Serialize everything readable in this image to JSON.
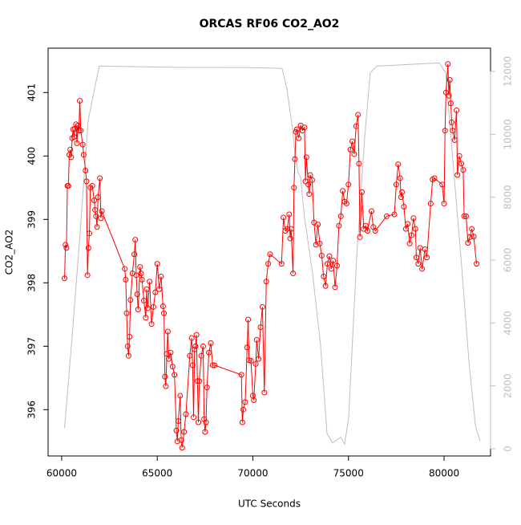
{
  "chart_data": {
    "type": "line",
    "title": "ORCAS RF06 CO2_AO2",
    "x_label": "UTC Seconds",
    "y_label": "CO2_AO2",
    "xlim": [
      59290,
      82430
    ],
    "xticks": [
      60000,
      65000,
      70000,
      75000,
      80000
    ],
    "ylim": [
      395.27,
      401.7
    ],
    "yticks": [
      396,
      397,
      398,
      399,
      400,
      401
    ],
    "y2lim": [
      -230,
      12740
    ],
    "y2ticks": [
      0,
      2000,
      4000,
      6000,
      8000,
      10000,
      12000
    ],
    "series": [
      {
        "color": "#bebebe",
        "axis": "y2",
        "markers": false,
        "x": [
          60150,
          60545,
          60965,
          61384,
          61720,
          61970,
          66000,
          70000,
          71450,
          71530,
          71780,
          72075,
          72200,
          72370,
          72495,
          72700,
          73120,
          73540,
          73880,
          74170,
          74590,
          74800,
          75010,
          75430,
          75850,
          76140,
          76480,
          79750,
          80085,
          80460,
          80880,
          81300,
          81640,
          81890
        ],
        "values": [
          663,
          3550,
          6860,
          10430,
          11450,
          12170,
          12130,
          12120,
          12100,
          12090,
          11450,
          10180,
          9400,
          8770,
          8650,
          7370,
          5590,
          3290,
          480,
          180,
          360,
          150,
          1000,
          6100,
          9920,
          11960,
          12170,
          12270,
          11960,
          9160,
          6100,
          2780,
          740,
          230
        ]
      },
      {
        "color": "#ff0000",
        "axis": "y",
        "markers": true,
        "x": [
          60150,
          60200,
          60250,
          60300,
          60350,
          60400,
          60450,
          60500,
          60550,
          60600,
          60650,
          60700,
          60750,
          60800,
          60850,
          60900,
          60950,
          61000,
          61100,
          61150,
          61250,
          61300,
          61350,
          61400,
          61450,
          61500,
          61600,
          61700,
          61750,
          61800,
          61850,
          61900,
          62000,
          62050,
          62100,
          63300,
          63350,
          63400,
          63450,
          63500,
          63550,
          63600,
          63700,
          63800,
          63850,
          63900,
          63950,
          64000,
          64100,
          64150,
          64200,
          64300,
          64400,
          64450,
          64500,
          64600,
          64700,
          64800,
          64900,
          65000,
          65100,
          65200,
          65300,
          65350,
          65400,
          65450,
          65500,
          65550,
          65600,
          65700,
          65800,
          65900,
          66000,
          66050,
          66100,
          66200,
          66250,
          66300,
          66400,
          66500,
          66700,
          66800,
          66850,
          66900,
          66950,
          67000,
          67050,
          67100,
          67150,
          67200,
          67300,
          67400,
          67450,
          67500,
          67550,
          67600,
          67700,
          67800,
          67900,
          68000,
          69400,
          69450,
          69500,
          69600,
          69700,
          69750,
          69800,
          69900,
          70000,
          70050,
          70150,
          70200,
          70300,
          70400,
          70500,
          70600,
          70700,
          70800,
          70900,
          71500,
          71600,
          71700,
          71800,
          71900,
          71950,
          72000,
          72100,
          72150,
          72200,
          72250,
          72300,
          72400,
          72500,
          72600,
          72700,
          72750,
          72800,
          72900,
          72950,
          73000,
          73100,
          73200,
          73300,
          73400,
          73500,
          73600,
          73700,
          73800,
          73900,
          74000,
          74100,
          74200,
          74300,
          74400,
          74500,
          74600,
          74700,
          74800,
          74900,
          75000,
          75100,
          75200,
          75300,
          75400,
          75500,
          75550,
          75600,
          75700,
          75800,
          75900,
          76000,
          76200,
          76300,
          76400,
          77000,
          77400,
          77500,
          77600,
          77700,
          77750,
          77800,
          77900,
          78000,
          78100,
          78200,
          78300,
          78400,
          78500,
          78550,
          78650,
          78750,
          78850,
          79000,
          79100,
          79300,
          79400,
          79500,
          79900,
          80000,
          80050,
          80100,
          80200,
          80250,
          80300,
          80350,
          80400,
          80450,
          80550,
          80650,
          80700,
          80800,
          80900,
          81000,
          81050,
          81150,
          81250,
          81350,
          81450,
          81550,
          81700
        ],
        "values": [
          398.07,
          398.6,
          398.55,
          399.53,
          399.53,
          400.02,
          400.1,
          399.98,
          400.28,
          400.42,
          400.3,
          400.43,
          400.5,
          400.2,
          400.48,
          400.4,
          400.87,
          400.4,
          400.18,
          400.02,
          399.77,
          399.6,
          398.12,
          398.55,
          398.78,
          399.5,
          399.53,
          399.3,
          399.15,
          399.05,
          398.88,
          399.35,
          399.65,
          399.02,
          399.13,
          398.22,
          398.05,
          397.52,
          397.0,
          396.85,
          397.15,
          397.73,
          398.15,
          398.45,
          398.68,
          398.12,
          397.82,
          397.58,
          398.25,
          398.15,
          398.05,
          397.72,
          397.45,
          397.9,
          397.6,
          398.02,
          397.35,
          397.62,
          397.85,
          398.3,
          397.9,
          398.1,
          397.63,
          397.52,
          396.52,
          396.37,
          396.88,
          397.23,
          396.8,
          396.9,
          396.68,
          396.55,
          395.67,
          395.5,
          395.82,
          396.22,
          395.52,
          395.4,
          395.65,
          395.93,
          396.85,
          397.13,
          396.7,
          395.88,
          396.95,
          397.0,
          397.18,
          396.45,
          395.8,
          396.45,
          396.85,
          397.0,
          395.85,
          395.65,
          395.8,
          396.35,
          396.9,
          397.05,
          396.7,
          396.7,
          396.55,
          395.8,
          396.0,
          396.12,
          396.98,
          397.42,
          396.78,
          396.77,
          396.22,
          396.15,
          396.72,
          397.1,
          396.8,
          397.3,
          397.62,
          396.27,
          398.02,
          398.3,
          398.45,
          398.3,
          399.03,
          398.82,
          398.85,
          399.08,
          398.7,
          398.85,
          398.15,
          399.5,
          399.95,
          400.38,
          400.42,
          400.28,
          400.48,
          400.4,
          400.45,
          399.6,
          399.98,
          399.55,
          399.4,
          399.7,
          399.62,
          398.95,
          398.6,
          398.92,
          398.62,
          398.43,
          398.1,
          397.95,
          398.3,
          398.42,
          398.22,
          398.35,
          397.93,
          398.27,
          398.9,
          399.05,
          399.45,
          399.28,
          399.25,
          399.55,
          400.1,
          400.23,
          400.03,
          400.47,
          400.65,
          399.88,
          398.72,
          399.43,
          398.85,
          398.9,
          398.82,
          399.13,
          398.88,
          398.82,
          399.05,
          399.08,
          399.55,
          399.87,
          399.65,
          399.35,
          399.43,
          399.2,
          398.85,
          398.93,
          398.62,
          398.75,
          399.02,
          398.85,
          398.4,
          398.3,
          398.55,
          398.22,
          398.53,
          398.4,
          399.25,
          399.63,
          399.65,
          399.55,
          399.25,
          400.4,
          401.0,
          401.45,
          400.95,
          401.2,
          400.83,
          400.53,
          400.4,
          400.25,
          400.72,
          399.7,
          400.0,
          399.88,
          399.78,
          399.05,
          399.05,
          398.63,
          398.72,
          398.85,
          398.73,
          398.3
        ]
      }
    ]
  }
}
